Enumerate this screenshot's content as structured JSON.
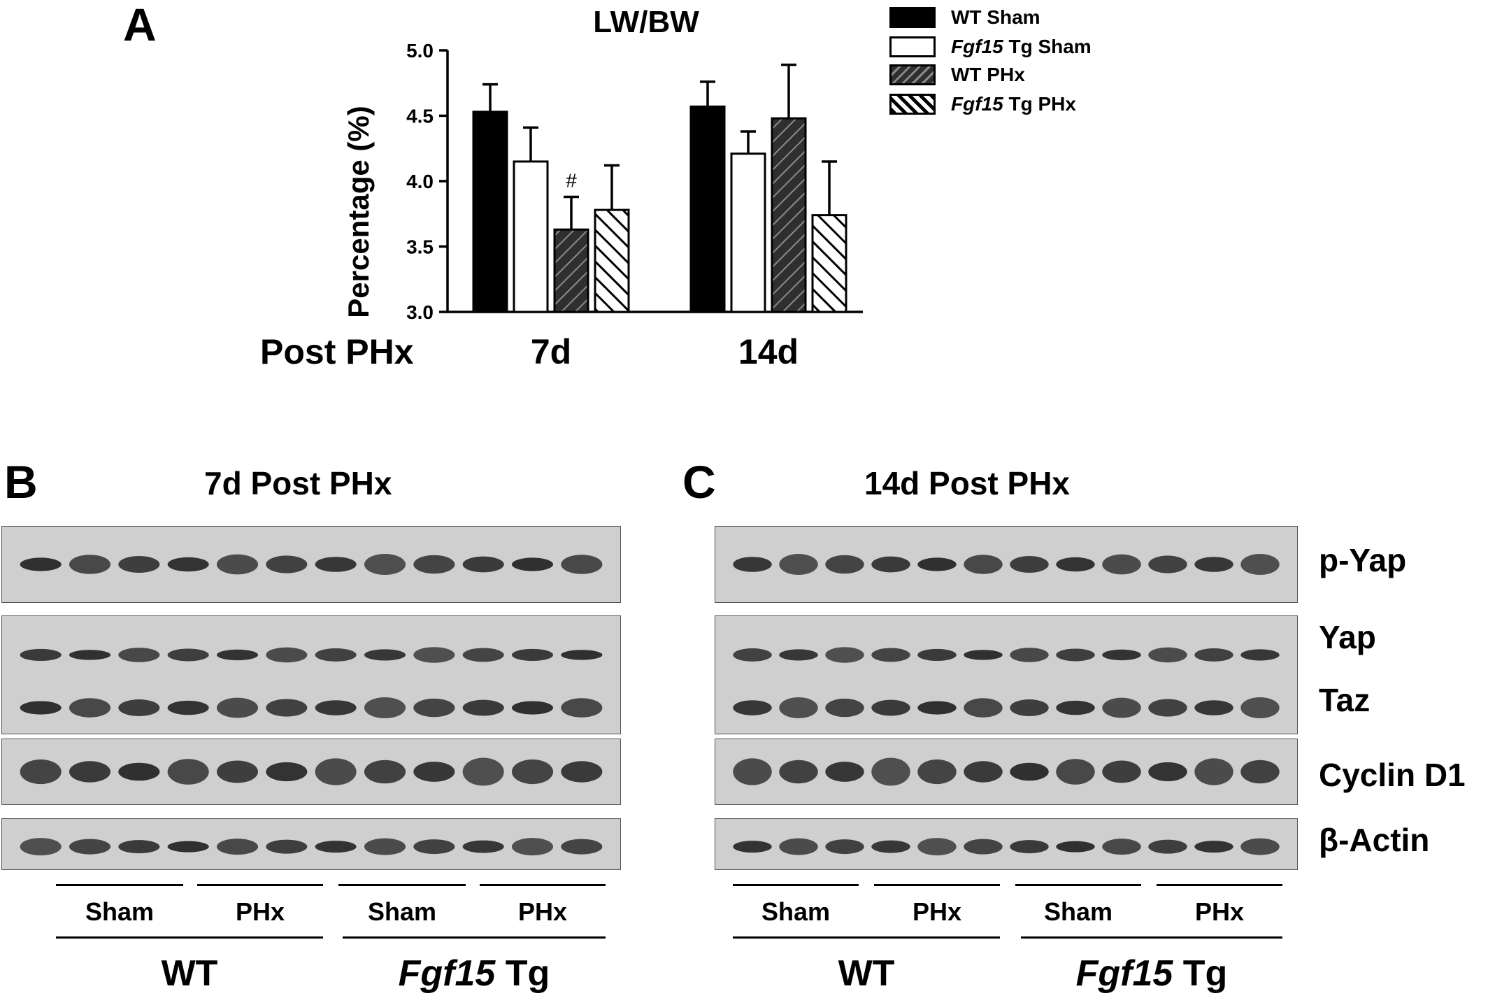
{
  "panels": {
    "a": "A",
    "b": "B",
    "c": "C"
  },
  "chart_data": {
    "type": "bar",
    "title": "LW/BW",
    "ylabel": "Percentage (%)",
    "xlabel": "Post PHx",
    "categories": [
      "7d",
      "14d"
    ],
    "ylim": [
      3.0,
      5.0
    ],
    "yticks": [
      "3.0",
      "3.5",
      "4.0",
      "4.5",
      "5.0"
    ],
    "series": [
      {
        "name": "WT Sham",
        "name_italic": "",
        "name_rest": "WT Sham",
        "fill": "solid",
        "values": [
          4.53,
          4.57
        ],
        "errors": [
          0.21,
          0.19
        ]
      },
      {
        "name": "Fgf15 Tg Sham",
        "name_italic": "Fgf15",
        "name_rest": " Tg Sham",
        "fill": "white",
        "values": [
          4.15,
          4.21
        ],
        "errors": [
          0.26,
          0.17
        ]
      },
      {
        "name": "WT PHx",
        "name_italic": "",
        "name_rest": "WT PHx",
        "fill": "dark-hatch",
        "values": [
          3.63,
          4.48
        ],
        "errors": [
          0.25,
          0.41
        ]
      },
      {
        "name": "Fgf15 Tg PHx",
        "name_italic": "Fgf15",
        "name_rest": " Tg PHx",
        "fill": "white-hatch",
        "values": [
          3.78,
          3.74
        ],
        "errors": [
          0.34,
          0.41
        ]
      }
    ],
    "annotations": [
      {
        "text": "#",
        "category": "7d",
        "series": "WT PHx"
      }
    ],
    "grid": false,
    "legend_position": "top-right"
  },
  "blots": {
    "b_title": "7d Post PHx",
    "c_title": "14d Post PHx",
    "markers": [
      "p-Yap",
      "Yap",
      "Taz",
      "Cyclin D1",
      "β-Actin"
    ],
    "group_labels": {
      "sham": "Sham",
      "phx": "PHx"
    },
    "genotypes": {
      "wt": "WT",
      "tg_italic": "Fgf15",
      "tg_rest": " Tg"
    }
  }
}
